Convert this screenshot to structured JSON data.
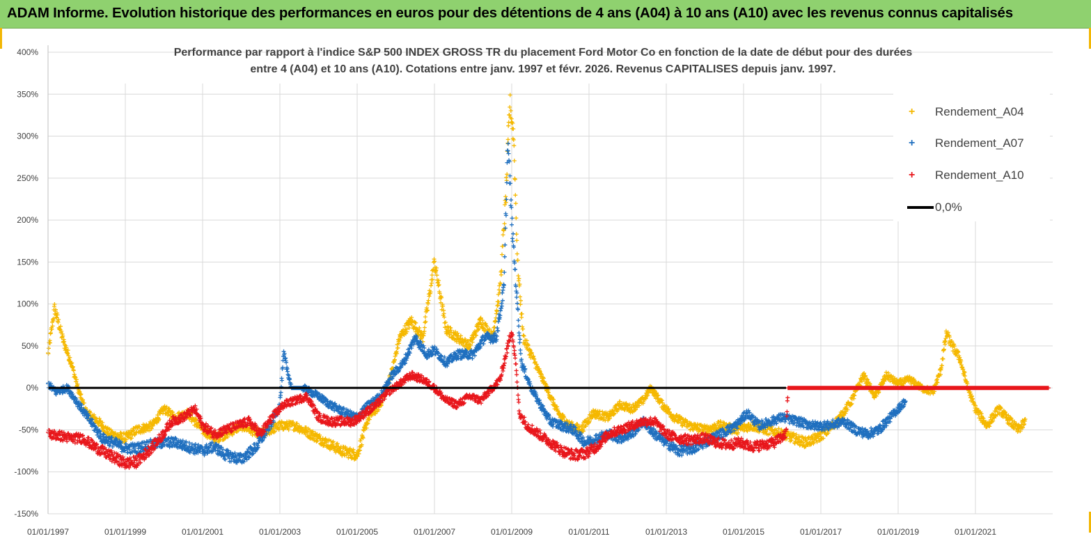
{
  "banner": {
    "title": "ADAM Informe. Evolution historique des performances en euros pour des détentions de 4 ans (A04) à 10 ans (A10) avec les revenus connus capitalisés"
  },
  "colors": {
    "banner_bg": "#8fd16f",
    "A04": "#f5b800",
    "A07": "#1f6fbf",
    "A10": "#e8161b",
    "zero": "#000000",
    "grid": "#d9d9d9",
    "text": "#404040"
  },
  "chart_data": {
    "type": "scatter",
    "title_line1": "Performance par rapport à l'indice S&P 500 INDEX GROSS TR  du placement Ford Motor Co en fonction de la date de début pour des durées",
    "title_line2": "entre 4 (A04) et 10 ans (A10).  Cotations entre janv. 1997 et févr. 2026. Revenus  CAPITALISES depuis janv. 1997.",
    "x_ticks": [
      "01/01/1997",
      "01/01/1999",
      "01/01/2001",
      "01/01/2003",
      "01/01/2005",
      "01/01/2007",
      "01/01/2009",
      "01/01/2011",
      "01/01/2013",
      "01/01/2015",
      "01/01/2017",
      "01/01/2019",
      "01/01/2021"
    ],
    "y_ticks": [
      "400%",
      "350%",
      "300%",
      "250%",
      "200%",
      "150%",
      "100%",
      "50%",
      "0%",
      "-50%",
      "-100%",
      "-150%"
    ],
    "xlim": [
      "1997-01-01",
      "2023-01-01"
    ],
    "ylim": [
      -150,
      400
    ],
    "y_unit": "%",
    "legend": [
      {
        "key": "A04",
        "label": "Rendement_A04"
      },
      {
        "key": "A07",
        "label": "Rendement_A07"
      },
      {
        "key": "A10",
        "label": "Rendement_A10"
      },
      {
        "key": "zero",
        "label": "0,0%"
      }
    ],
    "series": [
      {
        "name": "Rendement_A04",
        "points": [
          [
            1997.0,
            40
          ],
          [
            1997.17,
            95
          ],
          [
            1997.4,
            55
          ],
          [
            1997.6,
            30
          ],
          [
            1997.8,
            -5
          ],
          [
            1998.0,
            -30
          ],
          [
            1998.3,
            -40
          ],
          [
            1998.6,
            -55
          ],
          [
            1999.0,
            -60
          ],
          [
            1999.3,
            -50
          ],
          [
            1999.7,
            -45
          ],
          [
            2000.0,
            -25
          ],
          [
            2000.3,
            -35
          ],
          [
            2000.6,
            -30
          ],
          [
            2001.0,
            -50
          ],
          [
            2001.3,
            -60
          ],
          [
            2001.6,
            -55
          ],
          [
            2002.0,
            -45
          ],
          [
            2002.5,
            -55
          ],
          [
            2003.0,
            -45
          ],
          [
            2003.4,
            -45
          ],
          [
            2003.8,
            -55
          ],
          [
            2004.2,
            -65
          ],
          [
            2004.6,
            -75
          ],
          [
            2005.0,
            -80
          ],
          [
            2005.3,
            -35
          ],
          [
            2005.6,
            -20
          ],
          [
            2005.9,
            20
          ],
          [
            2006.1,
            60
          ],
          [
            2006.4,
            80
          ],
          [
            2006.7,
            60
          ],
          [
            2007.0,
            150
          ],
          [
            2007.3,
            70
          ],
          [
            2007.6,
            60
          ],
          [
            2007.9,
            50
          ],
          [
            2008.2,
            80
          ],
          [
            2008.5,
            60
          ],
          [
            2008.7,
            120
          ],
          [
            2008.85,
            230
          ],
          [
            2008.95,
            340
          ],
          [
            2009.05,
            300
          ],
          [
            2009.15,
            150
          ],
          [
            2009.3,
            60
          ],
          [
            2009.6,
            30
          ],
          [
            2009.9,
            0
          ],
          [
            2010.2,
            -30
          ],
          [
            2010.5,
            -45
          ],
          [
            2010.8,
            -50
          ],
          [
            2011.1,
            -30
          ],
          [
            2011.5,
            -35
          ],
          [
            2011.8,
            -20
          ],
          [
            2012.1,
            -25
          ],
          [
            2012.4,
            -15
          ],
          [
            2012.6,
            0
          ],
          [
            2012.9,
            -20
          ],
          [
            2013.2,
            -35
          ],
          [
            2013.6,
            -45
          ],
          [
            2014.0,
            -50
          ],
          [
            2014.4,
            -45
          ],
          [
            2014.8,
            -50
          ],
          [
            2015.2,
            -45
          ],
          [
            2015.6,
            -50
          ],
          [
            2016.0,
            -55
          ],
          [
            2016.3,
            -60
          ],
          [
            2016.6,
            -65
          ],
          [
            2016.9,
            -60
          ],
          [
            2017.2,
            -50
          ],
          [
            2017.5,
            -35
          ],
          [
            2017.8,
            -15
          ],
          [
            2018.1,
            15
          ],
          [
            2018.4,
            -10
          ],
          [
            2018.7,
            15
          ],
          [
            2019.0,
            5
          ],
          [
            2019.3,
            10
          ],
          [
            2019.6,
            0
          ],
          [
            2019.9,
            -5
          ],
          [
            2020.1,
            20
          ],
          [
            2020.25,
            65
          ],
          [
            2020.4,
            50
          ],
          [
            2020.6,
            35
          ],
          [
            2020.8,
            0
          ],
          [
            2021.0,
            -25
          ],
          [
            2021.3,
            -45
          ],
          [
            2021.6,
            -25
          ],
          [
            2021.9,
            -40
          ],
          [
            2022.1,
            -50
          ],
          [
            2022.3,
            -40
          ]
        ]
      },
      {
        "name": "Rendement_A07",
        "points": [
          [
            1997.0,
            5
          ],
          [
            1997.2,
            -5
          ],
          [
            1997.5,
            0
          ],
          [
            1997.8,
            -20
          ],
          [
            1998.1,
            -40
          ],
          [
            1998.4,
            -60
          ],
          [
            1998.7,
            -65
          ],
          [
            1999.0,
            -72
          ],
          [
            1999.3,
            -72
          ],
          [
            1999.6,
            -68
          ],
          [
            2000.0,
            -65
          ],
          [
            2000.3,
            -65
          ],
          [
            2000.6,
            -70
          ],
          [
            2001.0,
            -75
          ],
          [
            2001.3,
            -70
          ],
          [
            2001.6,
            -80
          ],
          [
            2002.0,
            -85
          ],
          [
            2002.4,
            -70
          ],
          [
            2002.8,
            -40
          ],
          [
            2003.0,
            -20
          ],
          [
            2003.1,
            40
          ],
          [
            2003.3,
            0
          ],
          [
            2003.6,
            0
          ],
          [
            2004.0,
            -10
          ],
          [
            2004.3,
            -20
          ],
          [
            2004.7,
            -30
          ],
          [
            2005.0,
            -35
          ],
          [
            2005.3,
            -20
          ],
          [
            2005.6,
            -10
          ],
          [
            2005.9,
            15
          ],
          [
            2006.2,
            30
          ],
          [
            2006.5,
            60
          ],
          [
            2006.8,
            40
          ],
          [
            2007.0,
            45
          ],
          [
            2007.3,
            30
          ],
          [
            2007.6,
            40
          ],
          [
            2008.0,
            40
          ],
          [
            2008.3,
            60
          ],
          [
            2008.6,
            60
          ],
          [
            2008.8,
            120
          ],
          [
            2008.9,
            295
          ],
          [
            2009.0,
            200
          ],
          [
            2009.1,
            130
          ],
          [
            2009.25,
            30
          ],
          [
            2009.5,
            0
          ],
          [
            2009.8,
            -25
          ],
          [
            2010.0,
            -40
          ],
          [
            2010.3,
            -45
          ],
          [
            2010.6,
            -50
          ],
          [
            2010.9,
            -65
          ],
          [
            2011.2,
            -60
          ],
          [
            2011.5,
            -55
          ],
          [
            2011.8,
            -60
          ],
          [
            2012.1,
            -55
          ],
          [
            2012.4,
            -40
          ],
          [
            2012.7,
            -55
          ],
          [
            2013.0,
            -65
          ],
          [
            2013.3,
            -75
          ],
          [
            2013.7,
            -72
          ],
          [
            2014.0,
            -65
          ],
          [
            2014.4,
            -55
          ],
          [
            2014.8,
            -45
          ],
          [
            2015.1,
            -30
          ],
          [
            2015.4,
            -45
          ],
          [
            2015.7,
            -40
          ],
          [
            2016.0,
            -35
          ],
          [
            2016.4,
            -40
          ],
          [
            2016.8,
            -45
          ],
          [
            2017.2,
            -45
          ],
          [
            2017.6,
            -40
          ],
          [
            2017.9,
            -50
          ],
          [
            2018.2,
            -55
          ],
          [
            2018.5,
            -50
          ],
          [
            2018.8,
            -35
          ],
          [
            2019.0,
            -25
          ],
          [
            2019.2,
            -15
          ]
        ]
      },
      {
        "name": "Rendement_A10",
        "points": [
          [
            1997.0,
            -55
          ],
          [
            1997.3,
            -57
          ],
          [
            1997.6,
            -60
          ],
          [
            1997.9,
            -60
          ],
          [
            1998.2,
            -70
          ],
          [
            1998.5,
            -78
          ],
          [
            1998.8,
            -85
          ],
          [
            1999.0,
            -90
          ],
          [
            1999.3,
            -88
          ],
          [
            1999.6,
            -75
          ],
          [
            1999.9,
            -60
          ],
          [
            2000.2,
            -40
          ],
          [
            2000.5,
            -35
          ],
          [
            2000.8,
            -25
          ],
          [
            2001.0,
            -45
          ],
          [
            2001.3,
            -55
          ],
          [
            2001.6,
            -50
          ],
          [
            2001.9,
            -45
          ],
          [
            2002.2,
            -40
          ],
          [
            2002.5,
            -55
          ],
          [
            2002.8,
            -35
          ],
          [
            2003.1,
            -20
          ],
          [
            2003.4,
            -15
          ],
          [
            2003.7,
            -10
          ],
          [
            2004.0,
            -35
          ],
          [
            2004.3,
            -40
          ],
          [
            2004.6,
            -40
          ],
          [
            2004.9,
            -40
          ],
          [
            2005.2,
            -30
          ],
          [
            2005.5,
            -20
          ],
          [
            2005.8,
            -5
          ],
          [
            2006.1,
            5
          ],
          [
            2006.4,
            15
          ],
          [
            2006.7,
            10
          ],
          [
            2007.0,
            0
          ],
          [
            2007.3,
            -15
          ],
          [
            2007.6,
            -20
          ],
          [
            2007.9,
            -10
          ],
          [
            2008.2,
            -15
          ],
          [
            2008.5,
            0
          ],
          [
            2008.7,
            10
          ],
          [
            2008.9,
            50
          ],
          [
            2009.0,
            70
          ],
          [
            2009.1,
            30
          ],
          [
            2009.2,
            -30
          ],
          [
            2009.4,
            -45
          ],
          [
            2009.7,
            -55
          ],
          [
            2010.0,
            -65
          ],
          [
            2010.3,
            -75
          ],
          [
            2010.6,
            -80
          ],
          [
            2010.9,
            -78
          ],
          [
            2011.2,
            -70
          ],
          [
            2011.5,
            -55
          ],
          [
            2011.8,
            -50
          ],
          [
            2012.1,
            -45
          ],
          [
            2012.4,
            -40
          ],
          [
            2012.7,
            -40
          ],
          [
            2013.0,
            -55
          ],
          [
            2013.3,
            -60
          ],
          [
            2013.6,
            -62
          ],
          [
            2014.0,
            -60
          ],
          [
            2014.3,
            -65
          ],
          [
            2014.6,
            -68
          ],
          [
            2014.9,
            -65
          ],
          [
            2015.2,
            -70
          ],
          [
            2015.5,
            -68
          ],
          [
            2015.8,
            -65
          ],
          [
            2016.1,
            -55
          ],
          [
            2016.15,
            0
          ],
          [
            2018.0,
            0
          ],
          [
            2020.0,
            0
          ],
          [
            2022.9,
            0
          ]
        ]
      }
    ]
  }
}
